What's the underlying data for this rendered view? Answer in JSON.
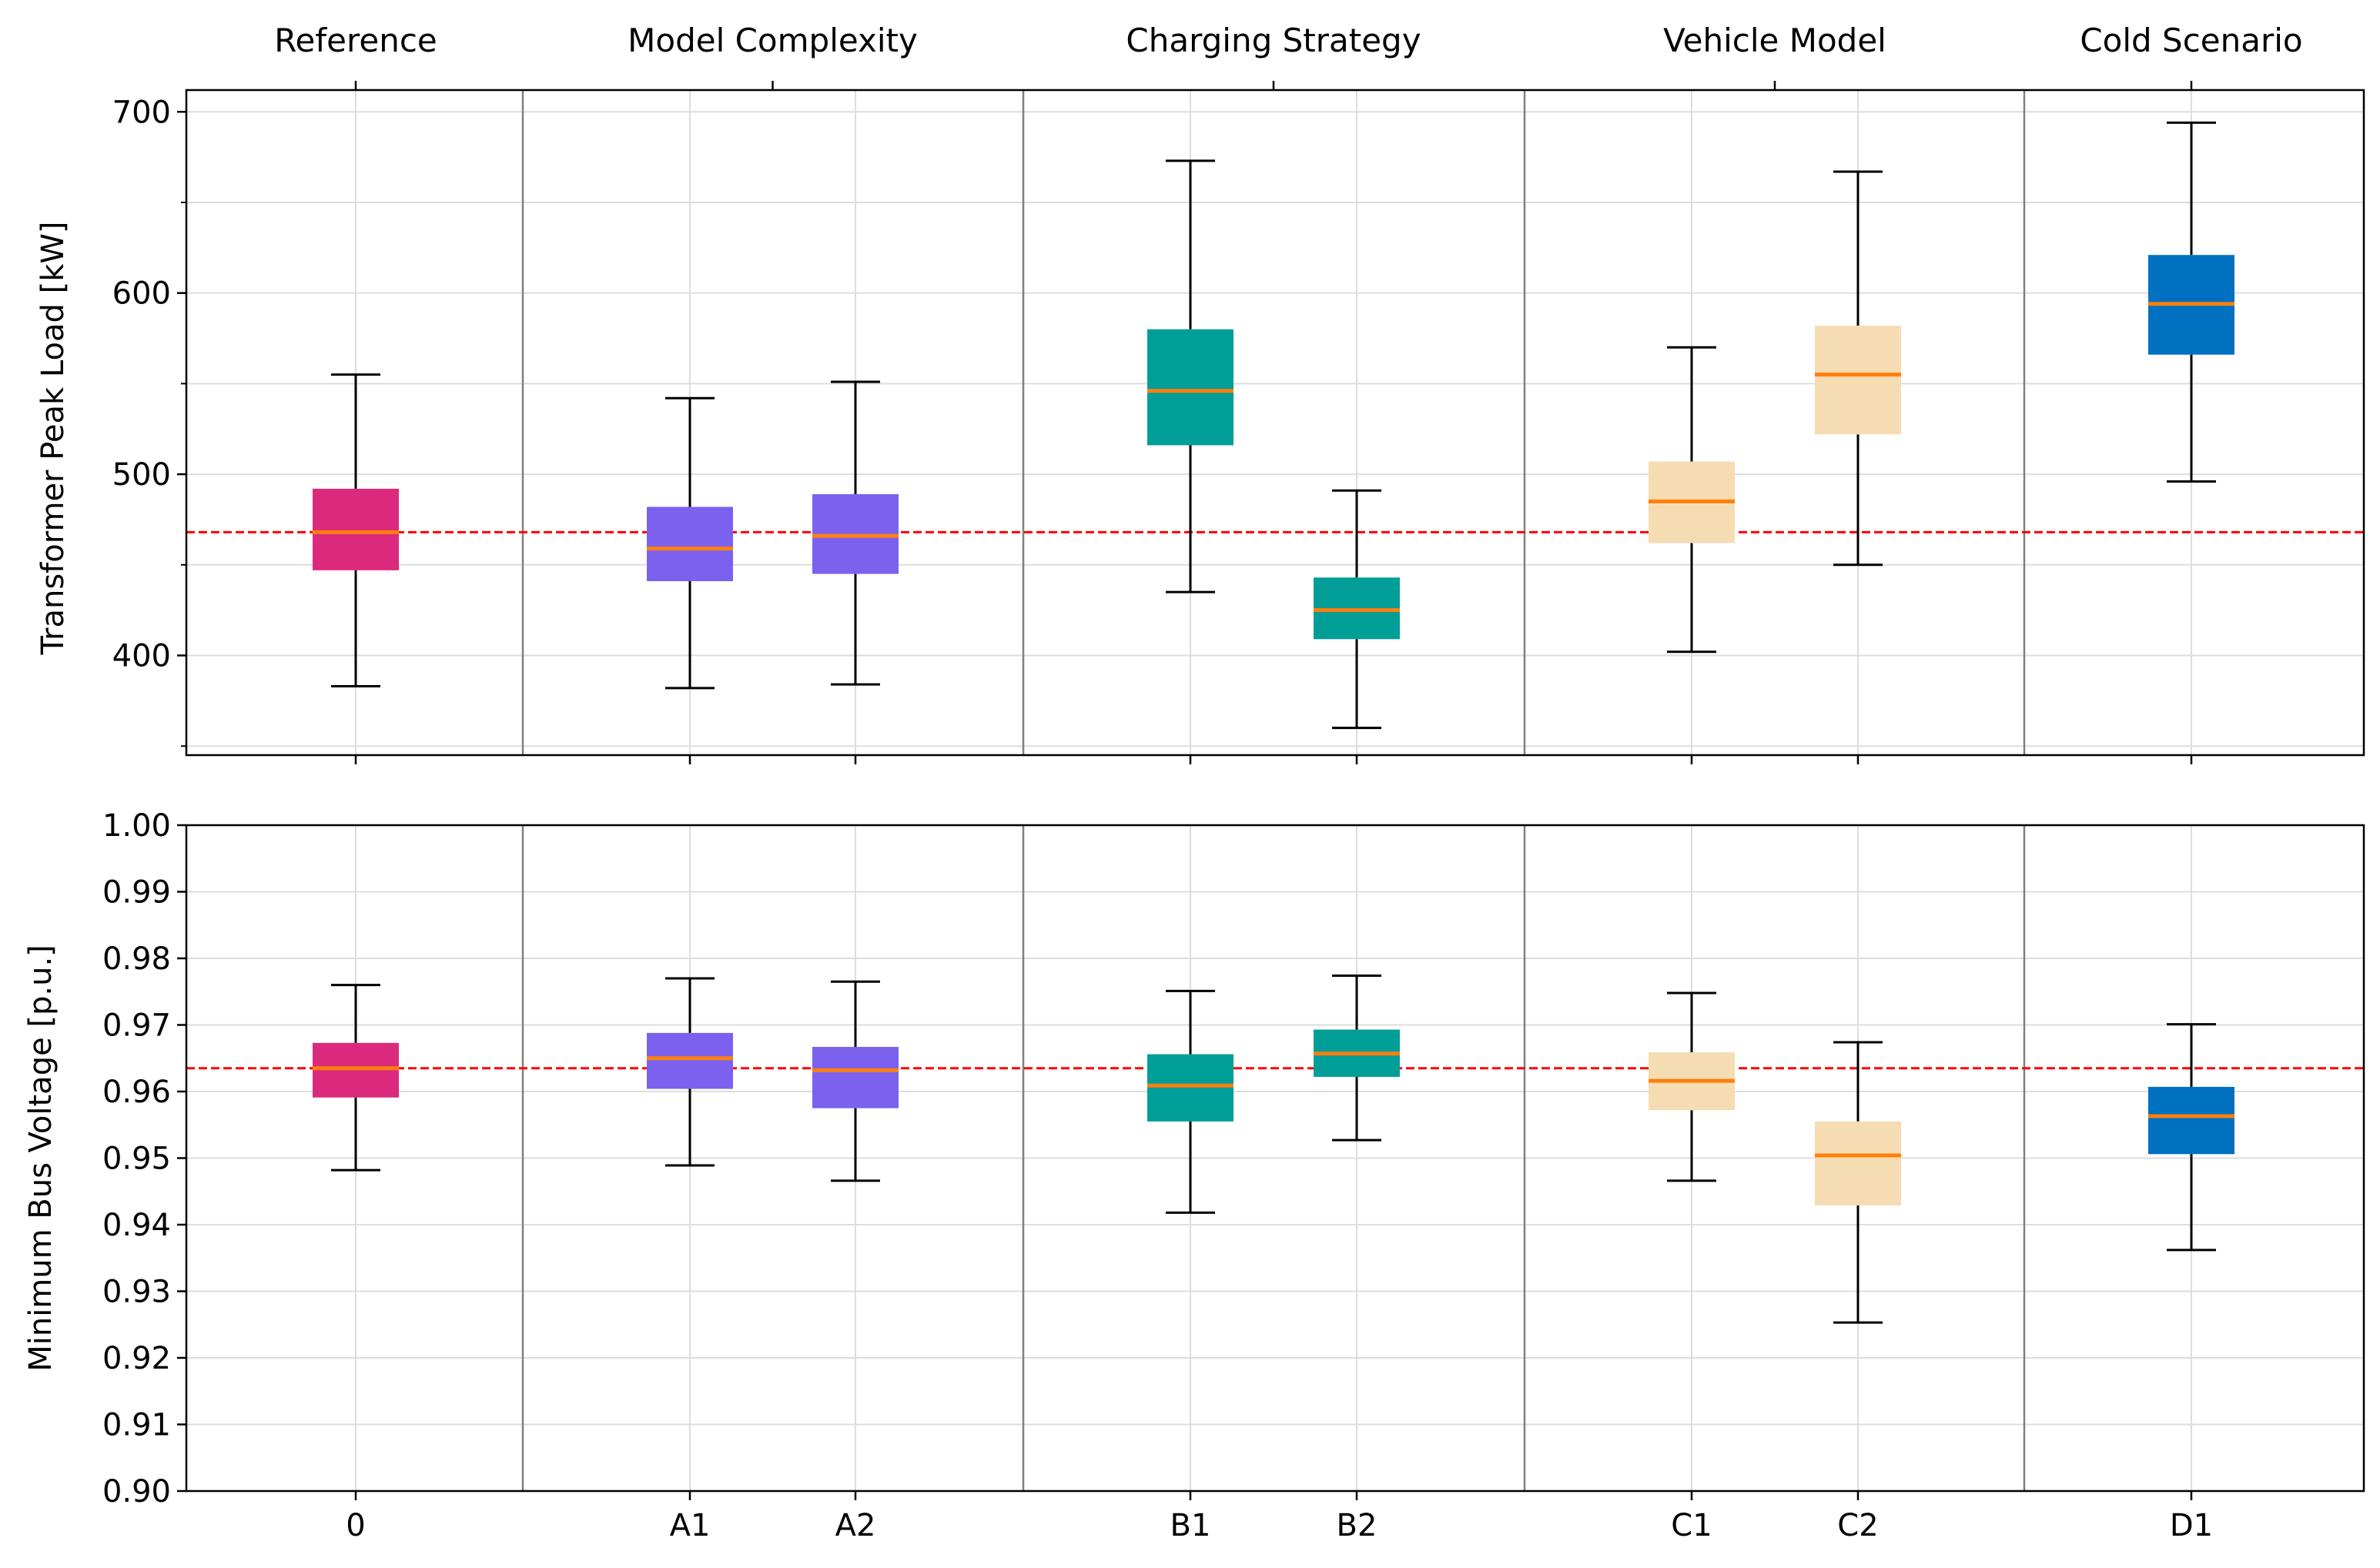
{
  "colors": {
    "reference": "#DB2A7D",
    "model_complexity": "#7B61EE",
    "charging_strategy": "#009E97",
    "vehicle_model": "#F5DCB2",
    "cold_scenario": "#0070C0",
    "median": "#FF7F0E",
    "reference_line": "#FF0000",
    "separator": "#808080",
    "grid": "#DDDDDD",
    "whisker": "#000000"
  },
  "chart_data": [
    {
      "type": "box",
      "panel": "top",
      "ylabel": "Transformer Peak Load [kW]",
      "ylim": [
        345,
        712
      ],
      "yticks": [
        400,
        500,
        600,
        700
      ],
      "yticks_labels": [
        "400",
        "500",
        "600",
        "700"
      ],
      "yminor_ticks": [
        350,
        450,
        550,
        650
      ],
      "reference_value": 468,
      "categories": [
        "0",
        "A1",
        "A2",
        "B1",
        "B2",
        "C1",
        "C2",
        "D1"
      ],
      "groups": [
        {
          "label": "Reference",
          "categories": [
            "0"
          ]
        },
        {
          "label": "Model Complexity",
          "categories": [
            "A1",
            "A2"
          ]
        },
        {
          "label": "Charging Strategy",
          "categories": [
            "B1",
            "B2"
          ]
        },
        {
          "label": "Vehicle Model",
          "categories": [
            "C1",
            "C2"
          ]
        },
        {
          "label": "Cold Scenario",
          "categories": [
            "D1"
          ]
        }
      ],
      "boxes": [
        {
          "category": "0",
          "group": "reference",
          "whisker_low": 383,
          "q1": 447,
          "median": 468,
          "q3": 492,
          "whisker_high": 555
        },
        {
          "category": "A1",
          "group": "model_complexity",
          "whisker_low": 382,
          "q1": 441,
          "median": 459,
          "q3": 482,
          "whisker_high": 542
        },
        {
          "category": "A2",
          "group": "model_complexity",
          "whisker_low": 384,
          "q1": 445,
          "median": 466,
          "q3": 489,
          "whisker_high": 551
        },
        {
          "category": "B1",
          "group": "charging_strategy",
          "whisker_low": 435,
          "q1": 516,
          "median": 546,
          "q3": 580,
          "whisker_high": 673
        },
        {
          "category": "B2",
          "group": "charging_strategy",
          "whisker_low": 360,
          "q1": 409,
          "median": 425,
          "q3": 443,
          "whisker_high": 491
        },
        {
          "category": "C1",
          "group": "vehicle_model",
          "whisker_low": 402,
          "q1": 462,
          "median": 485,
          "q3": 507,
          "whisker_high": 570
        },
        {
          "category": "C2",
          "group": "vehicle_model",
          "whisker_low": 450,
          "q1": 522,
          "median": 555,
          "q3": 582,
          "whisker_high": 667
        },
        {
          "category": "D1",
          "group": "cold_scenario",
          "whisker_low": 496,
          "q1": 566,
          "median": 594,
          "q3": 621,
          "whisker_high": 694
        }
      ]
    },
    {
      "type": "box",
      "panel": "bottom",
      "ylabel": "Minimum Bus Voltage [p.u.]",
      "ylim": [
        0.9,
        1.0
      ],
      "yticks": [
        0.9,
        0.91,
        0.92,
        0.93,
        0.94,
        0.95,
        0.96,
        0.97,
        0.98,
        0.99,
        1.0
      ],
      "yticks_labels": [
        "0.90",
        "0.91",
        "0.92",
        "0.93",
        "0.94",
        "0.95",
        "0.96",
        "0.97",
        "0.98",
        "0.99",
        "1.00"
      ],
      "reference_value": 0.9635,
      "categories": [
        "0",
        "A1",
        "A2",
        "B1",
        "B2",
        "C1",
        "C2",
        "D1"
      ],
      "boxes": [
        {
          "category": "0",
          "group": "reference",
          "whisker_low": 0.9482,
          "q1": 0.9591,
          "median": 0.9635,
          "q3": 0.9673,
          "whisker_high": 0.976
        },
        {
          "category": "A1",
          "group": "model_complexity",
          "whisker_low": 0.9489,
          "q1": 0.9604,
          "median": 0.965,
          "q3": 0.9688,
          "whisker_high": 0.977
        },
        {
          "category": "A2",
          "group": "model_complexity",
          "whisker_low": 0.9466,
          "q1": 0.9575,
          "median": 0.9632,
          "q3": 0.9667,
          "whisker_high": 0.9765
        },
        {
          "category": "B1",
          "group": "charging_strategy",
          "whisker_low": 0.9418,
          "q1": 0.9555,
          "median": 0.9609,
          "q3": 0.9656,
          "whisker_high": 0.9751
        },
        {
          "category": "B2",
          "group": "charging_strategy",
          "whisker_low": 0.9527,
          "q1": 0.9622,
          "median": 0.9657,
          "q3": 0.9693,
          "whisker_high": 0.9774
        },
        {
          "category": "C1",
          "group": "vehicle_model",
          "whisker_low": 0.9466,
          "q1": 0.9572,
          "median": 0.9616,
          "q3": 0.9659,
          "whisker_high": 0.9748
        },
        {
          "category": "C2",
          "group": "vehicle_model",
          "whisker_low": 0.9253,
          "q1": 0.9429,
          "median": 0.9504,
          "q3": 0.9555,
          "whisker_high": 0.9674
        },
        {
          "category": "D1",
          "group": "cold_scenario",
          "whisker_low": 0.9362,
          "q1": 0.9506,
          "median": 0.9563,
          "q3": 0.9607,
          "whisker_high": 0.9701
        }
      ]
    }
  ]
}
